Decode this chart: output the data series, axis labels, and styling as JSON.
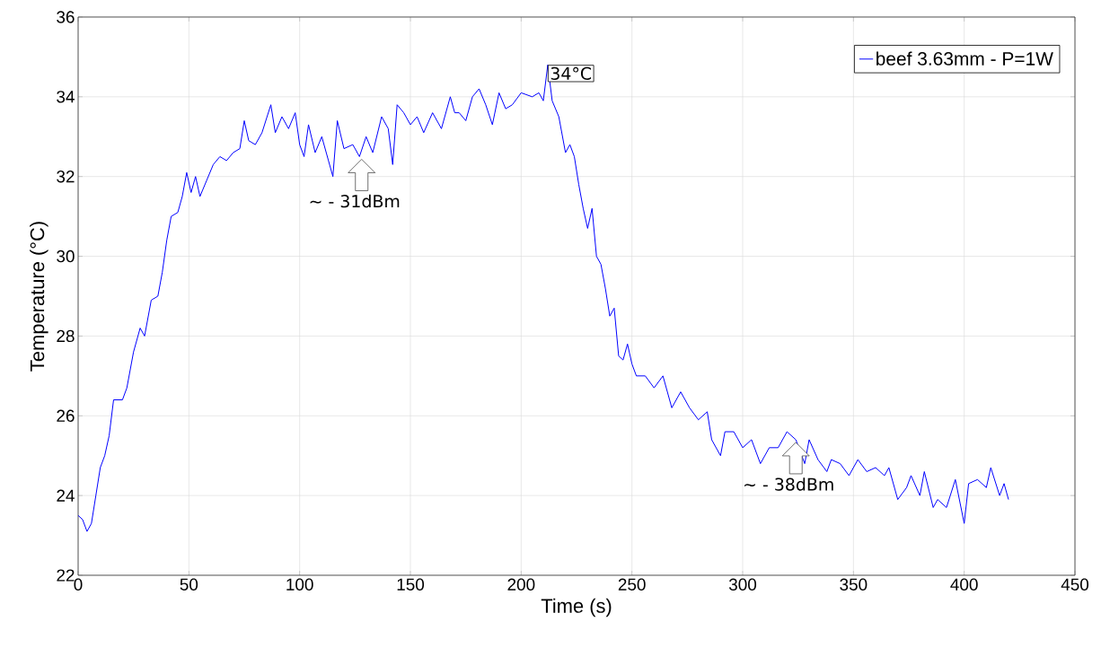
{
  "chart_data": {
    "type": "line",
    "xlabel": "Time (s)",
    "ylabel": "Temperature (°C)",
    "xlim": [
      0,
      450
    ],
    "ylim": [
      22,
      36
    ],
    "xticks": [
      0,
      50,
      100,
      150,
      200,
      250,
      300,
      350,
      400,
      450
    ],
    "yticks": [
      22,
      24,
      26,
      28,
      30,
      32,
      34,
      36
    ],
    "grid": true,
    "legend": "top right",
    "marker": "none",
    "line_style": "solid",
    "series": [
      {
        "name": "beef 3.63mm - P=1W",
        "color": "#0000ff",
        "x": [
          0,
          2,
          4,
          6,
          8,
          10,
          12,
          14,
          16,
          20,
          22,
          25,
          28,
          30,
          33,
          36,
          38,
          40,
          42,
          45,
          47,
          49,
          51,
          53,
          55,
          58,
          61,
          64,
          67,
          70,
          73,
          75,
          77,
          80,
          83,
          87,
          89,
          92,
          95,
          98,
          100,
          102,
          104,
          107,
          110,
          113,
          115,
          117,
          120,
          124,
          127,
          130,
          133,
          137,
          140,
          142,
          144,
          147,
          150,
          153,
          156,
          160,
          164,
          168,
          170,
          172,
          175,
          178,
          181,
          184,
          187,
          190,
          193,
          196,
          200,
          205,
          208,
          210,
          212,
          214,
          217,
          220,
          222,
          224,
          226,
          228,
          230,
          232,
          234,
          236,
          238,
          240,
          242,
          244,
          246,
          248,
          250,
          252,
          256,
          260,
          264,
          268,
          272,
          276,
          280,
          284,
          286,
          290,
          292,
          296,
          300,
          304,
          308,
          312,
          316,
          320,
          324,
          328,
          330,
          334,
          338,
          340,
          344,
          348,
          352,
          356,
          360,
          364,
          366,
          370,
          374,
          376,
          380,
          382,
          386,
          388,
          392,
          396,
          400,
          402,
          406,
          410,
          412,
          416,
          418,
          420
        ],
        "values": [
          23.5,
          23.4,
          23.1,
          23.3,
          24.0,
          24.7,
          25.0,
          25.5,
          26.4,
          26.4,
          26.7,
          27.6,
          28.2,
          28.0,
          28.9,
          29.0,
          29.6,
          30.4,
          31.0,
          31.1,
          31.5,
          32.1,
          31.6,
          32.0,
          31.5,
          31.9,
          32.3,
          32.5,
          32.4,
          32.6,
          32.7,
          33.4,
          32.9,
          32.8,
          33.1,
          33.8,
          33.1,
          33.5,
          33.2,
          33.6,
          32.8,
          32.5,
          33.3,
          32.6,
          33.0,
          32.4,
          32.0,
          33.4,
          32.7,
          32.8,
          32.5,
          33.0,
          32.6,
          33.5,
          33.2,
          32.3,
          33.8,
          33.6,
          33.3,
          33.5,
          33.1,
          33.6,
          33.2,
          34.0,
          33.6,
          33.6,
          33.4,
          34.0,
          34.2,
          33.8,
          33.3,
          34.1,
          33.7,
          33.8,
          34.1,
          34.0,
          34.1,
          33.9,
          34.8,
          33.9,
          33.5,
          32.6,
          32.8,
          32.5,
          31.8,
          31.2,
          30.7,
          31.2,
          30.0,
          29.8,
          29.2,
          28.5,
          28.7,
          27.5,
          27.4,
          27.8,
          27.3,
          27.0,
          27.0,
          26.7,
          27.0,
          26.2,
          26.6,
          26.2,
          25.9,
          26.1,
          25.4,
          25.0,
          25.6,
          25.6,
          25.2,
          25.4,
          24.8,
          25.2,
          25.2,
          25.6,
          25.4,
          24.8,
          25.4,
          24.9,
          24.6,
          24.9,
          24.8,
          24.5,
          24.9,
          24.6,
          24.7,
          24.5,
          24.7,
          23.9,
          24.2,
          24.5,
          24.0,
          24.6,
          23.7,
          23.9,
          23.7,
          24.4,
          23.3,
          24.3,
          24.4,
          24.2,
          24.7,
          24.0,
          24.3,
          23.9
        ]
      }
    ],
    "annotations": [
      {
        "text": "34°C",
        "x": 212,
        "y": 34.8
      },
      {
        "text": "~ - 31dBm",
        "x": 128,
        "y": 32.5
      },
      {
        "text": "~ - 38dBm",
        "x": 324,
        "y": 25.4
      }
    ]
  }
}
